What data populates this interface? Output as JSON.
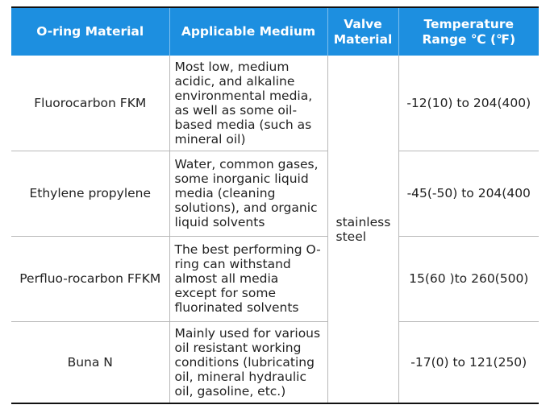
{
  "table": {
    "headers": [
      "O-ring Material",
      "Applicable Medium",
      "Valve Material",
      "Temperature Range ℃ (℉)"
    ],
    "valve_material": "stainless steel",
    "rows": [
      {
        "material": "Fluorocarbon FKM",
        "medium": "Most low, medium acidic, and alkaline environmental media, as well as some oil-based media (such as mineral oil)",
        "temperature": "-12(10) to 204(400)"
      },
      {
        "material": "Ethylene propylene",
        "medium": "Water, common gases, some inorganic liquid media (cleaning solutions), and organic liquid solvents",
        "temperature": "-45(-50) to 204(400"
      },
      {
        "material": "Perfluo-rocarbon FFKM",
        "medium": "The best performing O-ring can withstand almost all media except for some fluorinated solvents",
        "temperature": "15(60 )to 260(500)"
      },
      {
        "material": "Buna N",
        "medium": "Mainly used for various oil resistant working conditions (lubricating oil, mineral hydraulic oil, gasoline, etc.)",
        "temperature": "-17(0) to 121(250)"
      }
    ]
  },
  "colors": {
    "header_bg": "#1d8fe0",
    "header_text": "#ffffff",
    "body_text": "#222222",
    "grid": "#b8b8b8"
  }
}
